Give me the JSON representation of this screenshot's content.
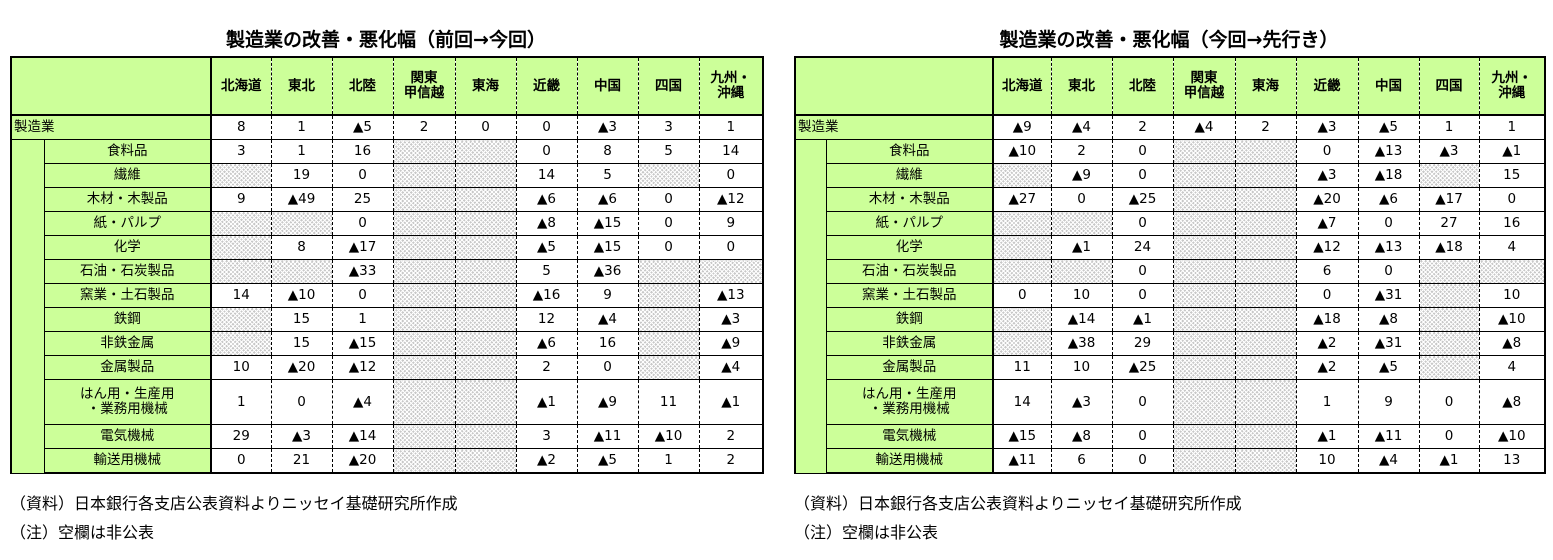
{
  "chart_data": [
    {
      "type": "table",
      "title": "製造業の改善・悪化幅（前回→今回）",
      "columns": [
        "北海道",
        "東北",
        "北陸",
        "関東\n甲信越",
        "東海",
        "近畿",
        "中国",
        "四国",
        "九州・\n沖縄"
      ],
      "rows": [
        {
          "label": "製造業",
          "cells": [
            "8",
            "1",
            "▲5",
            "2",
            "0",
            "0",
            "▲3",
            "3",
            "1"
          ]
        },
        {
          "label": "食料品",
          "cells": [
            "3",
            "1",
            "16",
            null,
            null,
            "0",
            "8",
            "5",
            "14"
          ]
        },
        {
          "label": "繊維",
          "cells": [
            null,
            "19",
            "0",
            null,
            null,
            "14",
            "5",
            null,
            "0"
          ]
        },
        {
          "label": "木材・木製品",
          "cells": [
            "9",
            "▲49",
            "25",
            null,
            null,
            "▲6",
            "▲6",
            "0",
            "▲12"
          ]
        },
        {
          "label": "紙・パルプ",
          "cells": [
            null,
            null,
            "0",
            null,
            null,
            "▲8",
            "▲15",
            "0",
            "9"
          ]
        },
        {
          "label": "化学",
          "cells": [
            null,
            "8",
            "▲17",
            null,
            null,
            "▲5",
            "▲15",
            "0",
            "0"
          ]
        },
        {
          "label": "石油・石炭製品",
          "cells": [
            null,
            null,
            "▲33",
            null,
            null,
            "5",
            "▲36",
            null,
            null
          ]
        },
        {
          "label": "窯業・土石製品",
          "cells": [
            "14",
            "▲10",
            "0",
            null,
            null,
            "▲16",
            "9",
            null,
            "▲13"
          ]
        },
        {
          "label": "鉄鋼",
          "cells": [
            null,
            "15",
            "1",
            null,
            null,
            "12",
            "▲4",
            null,
            "▲3"
          ]
        },
        {
          "label": "非鉄金属",
          "cells": [
            null,
            "15",
            "▲15",
            null,
            null,
            "▲6",
            "16",
            null,
            "▲9"
          ]
        },
        {
          "label": "金属製品",
          "cells": [
            "10",
            "▲20",
            "▲12",
            null,
            null,
            "2",
            "0",
            null,
            "▲4"
          ]
        },
        {
          "label": "はん用・生産用\n・業務用機械",
          "cells": [
            "1",
            "0",
            "▲4",
            null,
            null,
            "▲1",
            "▲9",
            "11",
            "▲1"
          ]
        },
        {
          "label": "電気機械",
          "cells": [
            "29",
            "▲3",
            "▲14",
            null,
            null,
            "3",
            "▲11",
            "▲10",
            "2"
          ]
        },
        {
          "label": "輸送用機械",
          "cells": [
            "0",
            "21",
            "▲20",
            null,
            null,
            "▲2",
            "▲5",
            "1",
            "2"
          ]
        }
      ]
    },
    {
      "type": "table",
      "title": "製造業の改善・悪化幅（今回→先行き）",
      "columns": [
        "北海道",
        "東北",
        "北陸",
        "関東\n甲信越",
        "東海",
        "近畿",
        "中国",
        "四国",
        "九州・\n沖縄"
      ],
      "rows": [
        {
          "label": "製造業",
          "cells": [
            "▲9",
            "▲4",
            "2",
            "▲4",
            "2",
            "▲3",
            "▲5",
            "1",
            "1"
          ]
        },
        {
          "label": "食料品",
          "cells": [
            "▲10",
            "2",
            "0",
            null,
            null,
            "0",
            "▲13",
            "▲3",
            "▲1"
          ]
        },
        {
          "label": "繊維",
          "cells": [
            null,
            "▲9",
            "0",
            null,
            null,
            "▲3",
            "▲18",
            null,
            "15"
          ]
        },
        {
          "label": "木材・木製品",
          "cells": [
            "▲27",
            "0",
            "▲25",
            null,
            null,
            "▲20",
            "▲6",
            "▲17",
            "0"
          ]
        },
        {
          "label": "紙・パルプ",
          "cells": [
            null,
            null,
            "0",
            null,
            null,
            "▲7",
            "0",
            "27",
            "16"
          ]
        },
        {
          "label": "化学",
          "cells": [
            null,
            "▲1",
            "24",
            null,
            null,
            "▲12",
            "▲13",
            "▲18",
            "4"
          ]
        },
        {
          "label": "石油・石炭製品",
          "cells": [
            null,
            null,
            "0",
            null,
            null,
            "6",
            "0",
            null,
            null
          ]
        },
        {
          "label": "窯業・土石製品",
          "cells": [
            "0",
            "10",
            "0",
            null,
            null,
            "0",
            "▲31",
            null,
            "10"
          ]
        },
        {
          "label": "鉄鋼",
          "cells": [
            null,
            "▲14",
            "▲1",
            null,
            null,
            "▲18",
            "▲8",
            null,
            "▲10"
          ]
        },
        {
          "label": "非鉄金属",
          "cells": [
            null,
            "▲38",
            "29",
            null,
            null,
            "▲2",
            "▲31",
            null,
            "▲8"
          ]
        },
        {
          "label": "金属製品",
          "cells": [
            "11",
            "10",
            "▲25",
            null,
            null,
            "▲2",
            "▲5",
            null,
            "4"
          ]
        },
        {
          "label": "はん用・生産用\n・業務用機械",
          "cells": [
            "14",
            "▲3",
            "0",
            null,
            null,
            "1",
            "9",
            "0",
            "▲8"
          ]
        },
        {
          "label": "電気機械",
          "cells": [
            "▲15",
            "▲8",
            "0",
            null,
            null,
            "▲1",
            "▲11",
            "0",
            "▲10"
          ]
        },
        {
          "label": "輸送用機械",
          "cells": [
            "▲11",
            "6",
            "0",
            null,
            null,
            "10",
            "▲4",
            "▲1",
            "13"
          ]
        }
      ]
    }
  ],
  "notes": [
    "（資料）日本銀行各支店公表資料よりニッセイ基礎研究所作成",
    "（注）空欄は非公表"
  ]
}
